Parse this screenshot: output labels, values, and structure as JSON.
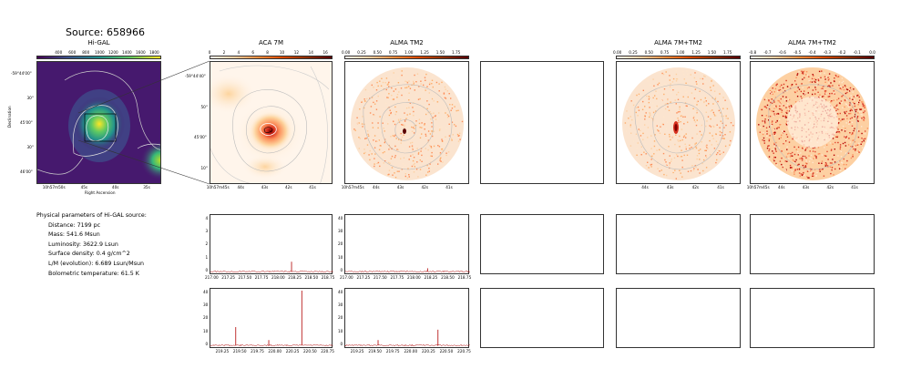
{
  "source_title": "Source: 658966",
  "panels": {
    "higal": {
      "title": "Hi-GAL",
      "cbar_ticks": [
        "400",
        "600",
        "800",
        "1000",
        "1200",
        "1400",
        "1600",
        "1800"
      ],
      "ra_ticks": [
        "10h57m50s",
        "45s",
        "40s",
        "35s"
      ],
      "dec_ticks": [
        "-59°44'00\"",
        "30\"",
        "45'00\"",
        "30\"",
        "46'00\""
      ],
      "xlabel": "Right Ascension",
      "ylabel": "Declination"
    },
    "aca7m": {
      "title": "ACA 7M",
      "cbar_ticks": [
        "0",
        "2",
        "4",
        "6",
        "8",
        "10",
        "12",
        "14",
        "16"
      ],
      "ra_ticks": [
        "10h57m45s",
        "44s",
        "43s",
        "42s",
        "41s"
      ],
      "dec_ticks": [
        "-59°44'40\"",
        "50\"",
        "45'00\"",
        "10\""
      ]
    },
    "almatm2": {
      "title": "ALMA TM2",
      "cbar_ticks": [
        "0.00",
        "0.25",
        "0.50",
        "0.75",
        "1.00",
        "1.25",
        "1.50",
        "1.75"
      ],
      "ra_ticks": [
        "10h57m45s",
        "44s",
        "43s",
        "42s",
        "41s"
      ]
    },
    "alma7mtm2": {
      "title": "ALMA 7M+TM2",
      "cbar_ticks": [
        "0.00",
        "0.25",
        "0.50",
        "0.75",
        "1.00",
        "1.25",
        "1.50",
        "1.75"
      ],
      "ra_ticks": [
        "44s",
        "43s",
        "42s",
        "41s"
      ]
    },
    "alma7mtm2_b": {
      "title": "ALMA 7M+TM2",
      "cbar_ticks": [
        "-0.8",
        "-0.7",
        "-0.6",
        "-0.5",
        "-0.4",
        "-0.3",
        "-0.2",
        "-0.1",
        "0.0"
      ],
      "ra_ticks": [
        "10h57m45s",
        "44s",
        "43s",
        "42s",
        "41s"
      ]
    }
  },
  "params": {
    "heading": "Physical parameters of Hi-GAL source:",
    "distance": "Distance: 7199 pc",
    "mass": "Mass: 541.6 Msun",
    "luminosity": "Luminosity: 3622.9 Lsun",
    "surface_density": "Surface density: 0.4 g/cm^2",
    "lm": "L/M (evolution): 6.689 Lsun/Msun",
    "tbol": "Bolometric temperature: 61.5 K"
  },
  "spectra": {
    "row1": {
      "y_ticks_a": [
        "0",
        "1",
        "2",
        "3",
        "4"
      ],
      "y_ticks_b": [
        "0",
        "10",
        "20",
        "30",
        "40"
      ],
      "x_ticks": [
        "217.00",
        "217.25",
        "217.50",
        "217.75",
        "218.00",
        "218.25",
        "218.50",
        "218.75"
      ],
      "xmin": 217.0,
      "xmax": 218.85,
      "lines_a": [
        {
          "x": 218.22,
          "y": 0.75
        }
      ],
      "lines_b": [
        {
          "x": 218.22,
          "y": 2.5
        }
      ]
    },
    "row2": {
      "y_ticks_a": [
        "0",
        "10",
        "20",
        "30",
        "40"
      ],
      "y_ticks_b": [
        "0",
        "10",
        "20",
        "30",
        "40"
      ],
      "x_ticks": [
        "219.25",
        "219.50",
        "219.75",
        "220.00",
        "220.25",
        "220.50",
        "220.75"
      ],
      "xmin": 219.1,
      "xmax": 220.85,
      "lines_a": [
        {
          "x": 219.46,
          "y": 14
        },
        {
          "x": 219.93,
          "y": 4
        },
        {
          "x": 220.4,
          "y": 42
        }
      ],
      "lines_b": [
        {
          "x": 219.56,
          "y": 4
        },
        {
          "x": 220.4,
          "y": 12
        }
      ]
    }
  },
  "colors": {
    "accent": "#8b0000",
    "spectrum": "#b00000",
    "viridis_bg": "#46196e",
    "contour": "#aaaaaa"
  }
}
